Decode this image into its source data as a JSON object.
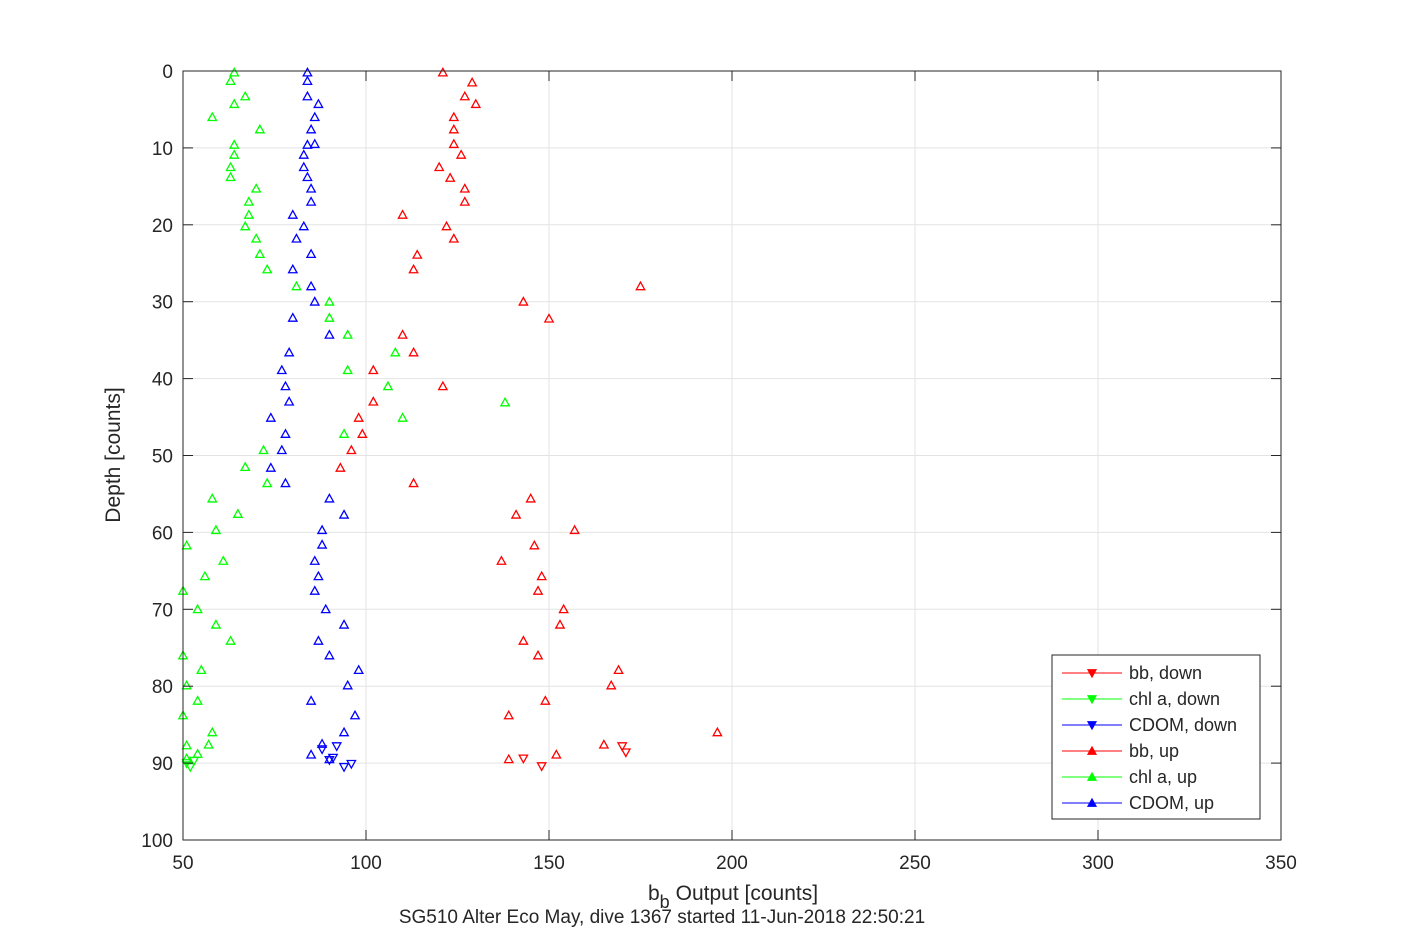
{
  "chart_data": {
    "type": "scatter",
    "title": "",
    "xlabel": "Output [counts]",
    "xlabel_symbol": "b",
    "xlabel_subscript": "b",
    "ylabel": "Depth [counts]",
    "caption": "SG510 Alter Eco May, dive 1367 started 11-Jun-2018 22:50:21",
    "xlim": [
      50,
      350
    ],
    "ylim": [
      0,
      100
    ],
    "y_reversed": true,
    "grid": true,
    "legend_position": "lower-right",
    "x_ticks": [
      "50",
      "100",
      "150",
      "200",
      "250",
      "300",
      "350"
    ],
    "y_ticks": [
      "0",
      "10",
      "20",
      "30",
      "40",
      "50",
      "60",
      "70",
      "80",
      "90",
      "100"
    ],
    "series": [
      {
        "name": "bb, down",
        "color": "#ff0000",
        "marker": "triangle-down",
        "points": [
          [
            143,
            89.4
          ],
          [
            148,
            90.4
          ],
          [
            170,
            87.8
          ],
          [
            171,
            88.6
          ]
        ]
      },
      {
        "name": "chl a, down",
        "color": "#00ff00",
        "marker": "triangle-down",
        "points": [
          [
            51,
            90.0
          ],
          [
            52,
            90.5
          ],
          [
            53,
            89.7
          ]
        ]
      },
      {
        "name": "CDOM, down",
        "color": "#0000ff",
        "marker": "triangle-down",
        "points": [
          [
            88,
            88.2
          ],
          [
            90,
            89.6
          ],
          [
            91,
            89.3
          ],
          [
            92,
            87.8
          ],
          [
            94,
            90.5
          ],
          [
            96,
            90.1
          ]
        ]
      },
      {
        "name": "bb, up",
        "color": "#ff0000",
        "marker": "triangle-up",
        "points": [
          [
            121,
            0.2
          ],
          [
            129,
            1.5
          ],
          [
            127,
            3.3
          ],
          [
            130,
            4.3
          ],
          [
            124,
            6.0
          ],
          [
            124,
            7.6
          ],
          [
            124,
            9.5
          ],
          [
            126,
            10.9
          ],
          [
            120,
            12.5
          ],
          [
            123,
            13.9
          ],
          [
            127,
            15.3
          ],
          [
            127,
            17.0
          ],
          [
            110,
            18.7
          ],
          [
            122,
            20.2
          ],
          [
            124,
            21.8
          ],
          [
            114,
            23.9
          ],
          [
            113,
            25.8
          ],
          [
            175,
            28.0
          ],
          [
            143,
            30.0
          ],
          [
            150,
            32.2
          ],
          [
            110,
            34.3
          ],
          [
            113,
            36.6
          ],
          [
            102,
            38.9
          ],
          [
            121,
            41.0
          ],
          [
            102,
            43.0
          ],
          [
            98,
            45.1
          ],
          [
            99,
            47.2
          ],
          [
            96,
            49.3
          ],
          [
            93,
            51.6
          ],
          [
            113,
            53.6
          ],
          [
            145,
            55.6
          ],
          [
            141,
            57.7
          ],
          [
            157,
            59.7
          ],
          [
            146,
            61.7
          ],
          [
            137,
            63.7
          ],
          [
            148,
            65.7
          ],
          [
            147,
            67.6
          ],
          [
            154,
            70.0
          ],
          [
            153,
            72.0
          ],
          [
            143,
            74.1
          ],
          [
            147,
            76.0
          ],
          [
            169,
            77.9
          ],
          [
            167,
            79.9
          ],
          [
            149,
            81.9
          ],
          [
            139,
            83.8
          ],
          [
            196,
            86.0
          ],
          [
            165,
            87.6
          ],
          [
            152,
            88.9
          ],
          [
            139,
            89.5
          ]
        ]
      },
      {
        "name": "chl a, up",
        "color": "#00ff00",
        "marker": "triangle-up",
        "points": [
          [
            64,
            0.2
          ],
          [
            63,
            1.3
          ],
          [
            67,
            3.3
          ],
          [
            64,
            4.3
          ],
          [
            58,
            6.0
          ],
          [
            71,
            7.6
          ],
          [
            64,
            9.6
          ],
          [
            64,
            10.9
          ],
          [
            63,
            12.5
          ],
          [
            63,
            13.8
          ],
          [
            70,
            15.3
          ],
          [
            68,
            17.0
          ],
          [
            68,
            18.7
          ],
          [
            67,
            20.2
          ],
          [
            70,
            21.8
          ],
          [
            71,
            23.8
          ],
          [
            73,
            25.8
          ],
          [
            81,
            28.0
          ],
          [
            90,
            30.0
          ],
          [
            90,
            32.1
          ],
          [
            95,
            34.3
          ],
          [
            108,
            36.6
          ],
          [
            95,
            38.9
          ],
          [
            106,
            41.0
          ],
          [
            138,
            43.1
          ],
          [
            110,
            45.1
          ],
          [
            94,
            47.2
          ],
          [
            72,
            49.3
          ],
          [
            67,
            51.5
          ],
          [
            73,
            53.6
          ],
          [
            58,
            55.6
          ],
          [
            65,
            57.6
          ],
          [
            59,
            59.7
          ],
          [
            51,
            61.7
          ],
          [
            61,
            63.7
          ],
          [
            56,
            65.7
          ],
          [
            50,
            67.6
          ],
          [
            54,
            70.0
          ],
          [
            59,
            72.0
          ],
          [
            63,
            74.1
          ],
          [
            50,
            76.0
          ],
          [
            55,
            77.9
          ],
          [
            51,
            79.9
          ],
          [
            54,
            81.9
          ],
          [
            50,
            83.8
          ],
          [
            58,
            86.0
          ],
          [
            57,
            87.6
          ],
          [
            51,
            87.7
          ],
          [
            54,
            88.8
          ],
          [
            51,
            89.4
          ]
        ]
      },
      {
        "name": "CDOM, up",
        "color": "#0000ff",
        "marker": "triangle-up",
        "points": [
          [
            84,
            0.2
          ],
          [
            84,
            1.3
          ],
          [
            84,
            3.3
          ],
          [
            87,
            4.3
          ],
          [
            86,
            6.0
          ],
          [
            85,
            7.6
          ],
          [
            86,
            9.5
          ],
          [
            83,
            10.9
          ],
          [
            84,
            9.6
          ],
          [
            83,
            12.5
          ],
          [
            84,
            13.8
          ],
          [
            85,
            15.3
          ],
          [
            85,
            17.0
          ],
          [
            80,
            18.7
          ],
          [
            83,
            20.2
          ],
          [
            81,
            21.8
          ],
          [
            85,
            23.8
          ],
          [
            80,
            25.8
          ],
          [
            85,
            28.0
          ],
          [
            86,
            30.0
          ],
          [
            80,
            32.1
          ],
          [
            90,
            34.3
          ],
          [
            79,
            36.6
          ],
          [
            77,
            38.9
          ],
          [
            78,
            41.0
          ],
          [
            79,
            43.0
          ],
          [
            74,
            45.1
          ],
          [
            78,
            47.2
          ],
          [
            77,
            49.3
          ],
          [
            74,
            51.6
          ],
          [
            78,
            53.6
          ],
          [
            90,
            55.6
          ],
          [
            94,
            57.7
          ],
          [
            88,
            59.7
          ],
          [
            88,
            61.6
          ],
          [
            86,
            63.7
          ],
          [
            87,
            65.7
          ],
          [
            86,
            67.6
          ],
          [
            89,
            70.0
          ],
          [
            94,
            72.0
          ],
          [
            87,
            74.1
          ],
          [
            90,
            76.0
          ],
          [
            98,
            77.9
          ],
          [
            95,
            79.9
          ],
          [
            85,
            81.9
          ],
          [
            97,
            83.8
          ],
          [
            94,
            86.0
          ],
          [
            88,
            87.5
          ],
          [
            85,
            88.9
          ],
          [
            90,
            89.5
          ]
        ]
      }
    ]
  }
}
